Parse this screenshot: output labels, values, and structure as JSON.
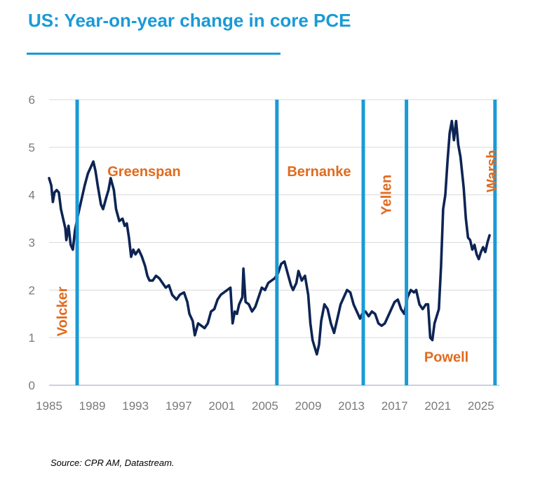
{
  "header": {
    "title": "US: Year-on-year change in core PCE"
  },
  "footer": {
    "source": "Source: CPR AM, Datastream."
  },
  "chart_data": {
    "type": "line",
    "title": "US: Year-on-year change in core PCE",
    "xlabel": "",
    "ylabel": "",
    "xlim": [
      1985,
      2026.7
    ],
    "ylim": [
      0,
      6
    ],
    "x_ticks": [
      "1985",
      "1989",
      "1993",
      "1997",
      "2001",
      "2005",
      "2009",
      "2013",
      "2017",
      "2021",
      "2025"
    ],
    "y_ticks": [
      "0",
      "1",
      "2",
      "3",
      "4",
      "5",
      "6"
    ],
    "grid": true,
    "line_color": "#0d2454",
    "marker_color": "#1a9ad6",
    "label_color": "#e06b1e",
    "chair_changes": [
      1987.6,
      2006.1,
      2014.1,
      2018.1,
      2026.3
    ],
    "chair_labels": [
      {
        "name": "Volcker",
        "x": 1986.2,
        "y": 1.55,
        "vertical": true
      },
      {
        "name": "Greenspan",
        "x": 1993.8,
        "y": 4.5,
        "vertical": false
      },
      {
        "name": "Bernanke",
        "x": 2010.0,
        "y": 4.5,
        "vertical": false
      },
      {
        "name": "Yellen",
        "x": 2016.2,
        "y": 4.0,
        "vertical": true
      },
      {
        "name": "Powell",
        "x": 2021.8,
        "y": 0.6,
        "vertical": false
      },
      {
        "name": "Warsh",
        "x": 2026.0,
        "y": 4.5,
        "vertical": true
      }
    ],
    "series": [
      {
        "values": [
          [
            1985.0,
            4.35
          ],
          [
            1985.2,
            4.2
          ],
          [
            1985.35,
            3.85
          ],
          [
            1985.5,
            4.05
          ],
          [
            1985.7,
            4.1
          ],
          [
            1985.9,
            4.05
          ],
          [
            1986.1,
            3.7
          ],
          [
            1986.3,
            3.5
          ],
          [
            1986.5,
            3.3
          ],
          [
            1986.6,
            3.05
          ],
          [
            1986.8,
            3.35
          ],
          [
            1987.0,
            2.95
          ],
          [
            1987.2,
            2.85
          ],
          [
            1987.4,
            3.25
          ],
          [
            1987.7,
            3.6
          ],
          [
            1988.0,
            3.9
          ],
          [
            1988.3,
            4.2
          ],
          [
            1988.6,
            4.45
          ],
          [
            1988.9,
            4.6
          ],
          [
            1989.1,
            4.7
          ],
          [
            1989.3,
            4.5
          ],
          [
            1989.5,
            4.2
          ],
          [
            1989.8,
            3.8
          ],
          [
            1990.0,
            3.7
          ],
          [
            1990.3,
            3.95
          ],
          [
            1990.5,
            4.1
          ],
          [
            1990.7,
            4.35
          ],
          [
            1991.0,
            4.1
          ],
          [
            1991.2,
            3.7
          ],
          [
            1991.5,
            3.45
          ],
          [
            1991.8,
            3.5
          ],
          [
            1992.0,
            3.35
          ],
          [
            1992.2,
            3.4
          ],
          [
            1992.4,
            3.1
          ],
          [
            1992.6,
            2.7
          ],
          [
            1992.8,
            2.85
          ],
          [
            1993.0,
            2.75
          ],
          [
            1993.3,
            2.85
          ],
          [
            1993.6,
            2.7
          ],
          [
            1993.9,
            2.5
          ],
          [
            1994.1,
            2.3
          ],
          [
            1994.3,
            2.2
          ],
          [
            1994.6,
            2.2
          ],
          [
            1994.9,
            2.3
          ],
          [
            1995.2,
            2.25
          ],
          [
            1995.5,
            2.15
          ],
          [
            1995.8,
            2.05
          ],
          [
            1996.1,
            2.1
          ],
          [
            1996.4,
            1.9
          ],
          [
            1996.8,
            1.8
          ],
          [
            1997.1,
            1.9
          ],
          [
            1997.5,
            1.95
          ],
          [
            1997.8,
            1.75
          ],
          [
            1998.0,
            1.5
          ],
          [
            1998.3,
            1.35
          ],
          [
            1998.5,
            1.05
          ],
          [
            1998.8,
            1.3
          ],
          [
            1999.1,
            1.25
          ],
          [
            1999.4,
            1.2
          ],
          [
            1999.7,
            1.3
          ],
          [
            2000.0,
            1.55
          ],
          [
            2000.3,
            1.6
          ],
          [
            2000.6,
            1.8
          ],
          [
            2000.9,
            1.9
          ],
          [
            2001.2,
            1.95
          ],
          [
            2001.5,
            2.0
          ],
          [
            2001.8,
            2.05
          ],
          [
            2002.0,
            1.3
          ],
          [
            2002.2,
            1.55
          ],
          [
            2002.4,
            1.5
          ],
          [
            2002.6,
            1.7
          ],
          [
            2002.9,
            1.85
          ],
          [
            2003.0,
            2.45
          ],
          [
            2003.2,
            1.75
          ],
          [
            2003.5,
            1.7
          ],
          [
            2003.8,
            1.55
          ],
          [
            2004.1,
            1.65
          ],
          [
            2004.4,
            1.85
          ],
          [
            2004.7,
            2.05
          ],
          [
            2005.0,
            2.0
          ],
          [
            2005.3,
            2.15
          ],
          [
            2005.6,
            2.2
          ],
          [
            2005.9,
            2.25
          ],
          [
            2006.2,
            2.35
          ],
          [
            2006.5,
            2.55
          ],
          [
            2006.8,
            2.6
          ],
          [
            2007.1,
            2.35
          ],
          [
            2007.4,
            2.1
          ],
          [
            2007.6,
            2.0
          ],
          [
            2007.9,
            2.15
          ],
          [
            2008.1,
            2.4
          ],
          [
            2008.4,
            2.2
          ],
          [
            2008.7,
            2.3
          ],
          [
            2009.0,
            1.9
          ],
          [
            2009.2,
            1.3
          ],
          [
            2009.4,
            0.95
          ],
          [
            2009.6,
            0.8
          ],
          [
            2009.8,
            0.65
          ],
          [
            2010.0,
            0.85
          ],
          [
            2010.2,
            1.35
          ],
          [
            2010.5,
            1.7
          ],
          [
            2010.8,
            1.6
          ],
          [
            2011.1,
            1.3
          ],
          [
            2011.4,
            1.1
          ],
          [
            2011.7,
            1.4
          ],
          [
            2012.0,
            1.7
          ],
          [
            2012.3,
            1.85
          ],
          [
            2012.6,
            2.0
          ],
          [
            2012.9,
            1.95
          ],
          [
            2013.2,
            1.7
          ],
          [
            2013.5,
            1.55
          ],
          [
            2013.8,
            1.4
          ],
          [
            2014.0,
            1.5
          ],
          [
            2014.3,
            1.55
          ],
          [
            2014.6,
            1.45
          ],
          [
            2014.9,
            1.55
          ],
          [
            2015.2,
            1.5
          ],
          [
            2015.5,
            1.3
          ],
          [
            2015.8,
            1.25
          ],
          [
            2016.1,
            1.3
          ],
          [
            2016.4,
            1.45
          ],
          [
            2016.7,
            1.6
          ],
          [
            2017.0,
            1.75
          ],
          [
            2017.3,
            1.8
          ],
          [
            2017.6,
            1.6
          ],
          [
            2017.9,
            1.5
          ],
          [
            2018.2,
            1.85
          ],
          [
            2018.5,
            2.0
          ],
          [
            2018.8,
            1.95
          ],
          [
            2019.0,
            2.0
          ],
          [
            2019.3,
            1.7
          ],
          [
            2019.6,
            1.6
          ],
          [
            2019.9,
            1.7
          ],
          [
            2020.1,
            1.7
          ],
          [
            2020.3,
            1.0
          ],
          [
            2020.5,
            0.95
          ],
          [
            2020.7,
            1.3
          ],
          [
            2020.9,
            1.45
          ],
          [
            2021.1,
            1.6
          ],
          [
            2021.3,
            2.5
          ],
          [
            2021.5,
            3.7
          ],
          [
            2021.7,
            4.0
          ],
          [
            2021.9,
            4.7
          ],
          [
            2022.1,
            5.3
          ],
          [
            2022.3,
            5.55
          ],
          [
            2022.5,
            5.15
          ],
          [
            2022.7,
            5.55
          ],
          [
            2022.9,
            5.05
          ],
          [
            2023.1,
            4.8
          ],
          [
            2023.4,
            4.15
          ],
          [
            2023.6,
            3.5
          ],
          [
            2023.8,
            3.1
          ],
          [
            2024.0,
            3.05
          ],
          [
            2024.2,
            2.85
          ],
          [
            2024.4,
            2.95
          ],
          [
            2024.6,
            2.75
          ],
          [
            2024.8,
            2.65
          ],
          [
            2025.0,
            2.8
          ],
          [
            2025.2,
            2.9
          ],
          [
            2025.4,
            2.8
          ],
          [
            2025.6,
            3.0
          ],
          [
            2025.8,
            3.15
          ]
        ]
      }
    ]
  }
}
